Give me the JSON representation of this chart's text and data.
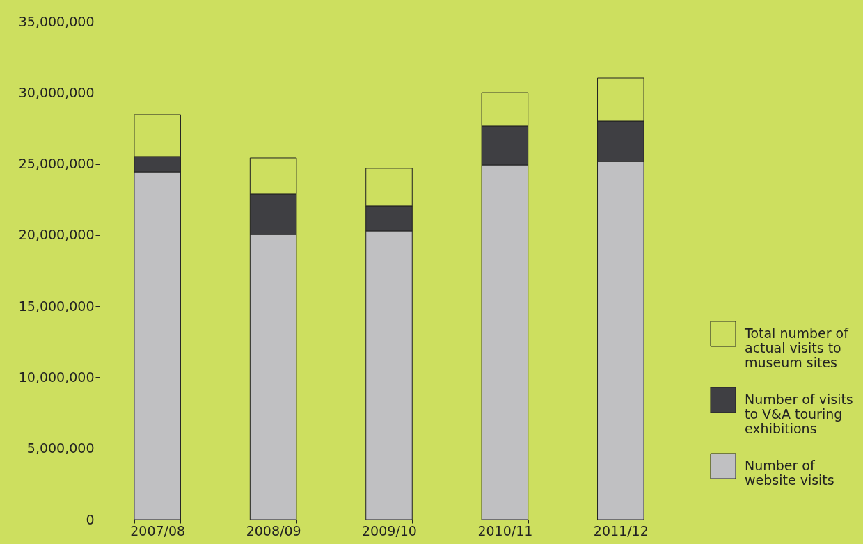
{
  "chart_data": {
    "type": "bar",
    "stacked": true,
    "categories": [
      "2007/08",
      "2008/09",
      "2009/10",
      "2010/11",
      "2011/12"
    ],
    "series": [
      {
        "name": "Number of website visits",
        "color": "#c0c0c2",
        "values": [
          24440000,
          20040000,
          20290000,
          24930000,
          25170000
        ]
      },
      {
        "name": "Number of visits to V&A touring exhibitions",
        "color": "#3f3f43",
        "values": [
          1080000,
          2840000,
          1760000,
          2740000,
          2840000
        ]
      },
      {
        "name": "Total number of actual visits to museum sites",
        "color": "#cddf5f",
        "values": [
          2930000,
          2540000,
          2640000,
          2340000,
          3030000
        ]
      }
    ],
    "ylim": [
      0,
      35000000
    ],
    "yticks": [
      0,
      {
        "value": 5000000,
        "label": "5,000,000"
      },
      {
        "value": 10000000,
        "label": "10,000,000"
      },
      {
        "value": 15000000,
        "label": "15,000,000"
      },
      {
        "value": 20000000,
        "label": "20,000,000"
      },
      {
        "value": 25000000,
        "label": "25,000,000"
      },
      {
        "value": 30000000,
        "label": "30,000,000"
      },
      {
        "value": 35000000,
        "label": "35,000,000"
      }
    ],
    "grid": false,
    "legend": "bottom right"
  }
}
